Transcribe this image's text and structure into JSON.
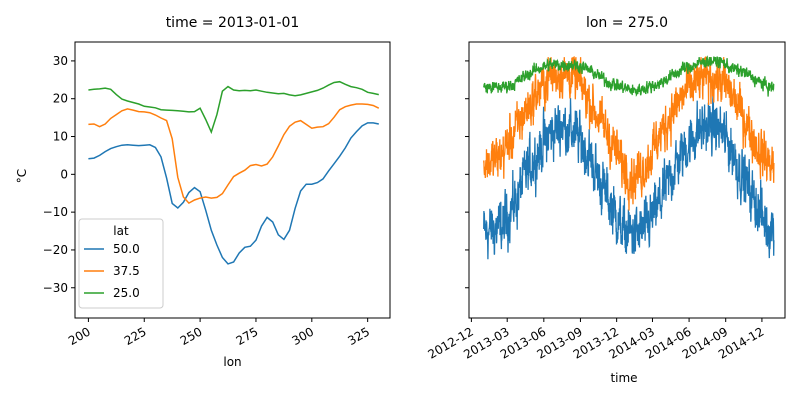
{
  "colors": {
    "blue": "#1f77b4",
    "orange": "#ff7f0e",
    "green": "#2ca02c"
  },
  "chart_data": [
    {
      "type": "line",
      "title": "time = 2013-01-01",
      "xlabel": "lon",
      "ylabel": "°C",
      "xlim": [
        194,
        335
      ],
      "ylim": [
        -38,
        35
      ],
      "xticks": [
        200,
        225,
        250,
        275,
        300,
        325
      ],
      "yticks": [
        -30,
        -20,
        -10,
        0,
        10,
        20,
        30
      ],
      "grid": false,
      "legend": {
        "title": "lat",
        "placement": "lower-left"
      },
      "x": [
        200,
        202.5,
        205,
        207.5,
        210,
        212.5,
        215,
        217.5,
        220,
        222.5,
        225,
        227.5,
        230,
        232.5,
        235,
        237.5,
        240,
        242.5,
        245,
        247.5,
        250,
        252.5,
        255,
        257.5,
        260,
        262.5,
        265,
        267.5,
        270,
        272.5,
        275,
        277.5,
        280,
        282.5,
        285,
        287.5,
        290,
        292.5,
        295,
        297.5,
        300,
        302.5,
        305,
        307.5,
        310,
        312.5,
        315,
        317.5,
        320,
        322.5,
        325,
        327.5,
        330
      ],
      "series": [
        {
          "name": "50.0",
          "color_key": "blue",
          "values": [
            4.1,
            4.3,
            5.0,
            6.0,
            6.8,
            7.3,
            7.7,
            7.8,
            7.7,
            7.6,
            7.7,
            7.8,
            7.1,
            4.6,
            -1.0,
            -7.7,
            -8.9,
            -7.4,
            -4.8,
            -3.5,
            -4.6,
            -9.5,
            -14.8,
            -18.7,
            -22.0,
            -23.7,
            -23.2,
            -20.8,
            -19.3,
            -19.0,
            -17.4,
            -13.7,
            -11.4,
            -12.6,
            -16.0,
            -17.2,
            -14.8,
            -9.0,
            -4.4,
            -2.6,
            -2.6,
            -2.2,
            -1.2,
            0.9,
            2.8,
            4.8,
            7.0,
            9.6,
            11.3,
            12.8,
            13.6,
            13.6,
            13.3
          ]
        },
        {
          "name": "37.5",
          "color_key": "orange",
          "values": [
            13.2,
            13.3,
            12.6,
            13.3,
            14.8,
            15.8,
            16.8,
            17.3,
            17.0,
            16.6,
            16.5,
            16.3,
            15.7,
            14.9,
            14.2,
            9.4,
            -0.8,
            -6.0,
            -7.6,
            -6.8,
            -6.3,
            -6.0,
            -6.3,
            -6.1,
            -5.1,
            -2.8,
            -0.6,
            0.3,
            1.1,
            2.3,
            2.6,
            2.2,
            2.7,
            4.6,
            7.5,
            10.5,
            12.7,
            13.8,
            14.2,
            13.2,
            12.2,
            12.5,
            12.6,
            13.4,
            15.1,
            17.1,
            17.9,
            18.3,
            18.6,
            18.6,
            18.5,
            18.2,
            17.5
          ]
        },
        {
          "name": "25.0",
          "color_key": "green",
          "values": [
            22.3,
            22.5,
            22.6,
            22.8,
            22.5,
            21.1,
            19.9,
            19.4,
            19.0,
            18.6,
            18.0,
            17.8,
            17.6,
            17.1,
            17.0,
            16.9,
            16.8,
            16.7,
            16.5,
            16.6,
            17.5,
            14.5,
            11.2,
            15.8,
            22.0,
            23.2,
            22.3,
            22.1,
            22.2,
            22.1,
            22.3,
            22.0,
            21.7,
            21.5,
            21.3,
            21.4,
            21.0,
            20.8,
            21.0,
            21.4,
            21.8,
            22.2,
            22.8,
            23.6,
            24.3,
            24.5,
            23.8,
            23.2,
            22.9,
            22.5,
            21.7,
            21.4,
            21.1
          ]
        }
      ]
    },
    {
      "type": "line",
      "title": "lon = 275.0",
      "xlabel": "time",
      "ylabel": "",
      "xlim": [
        "2012-11-25",
        "2015-01-28"
      ],
      "ylim": [
        -38,
        35
      ],
      "xticks": [
        "2012-12",
        "2013-03",
        "2013-06",
        "2013-09",
        "2013-12",
        "2014-03",
        "2014-06",
        "2014-09",
        "2014-12"
      ],
      "yticks": [
        -30,
        -20,
        -10,
        0,
        10,
        20,
        30
      ],
      "tick_labels_y_visible": false,
      "grid": false,
      "series_note_start": "2013-01-01",
      "series_note_end": "2014-12-31",
      "series": [
        {
          "name": "50.0",
          "color_key": "blue",
          "monthly_mean": [
            -15,
            -14,
            -8,
            0,
            6,
            11,
            13,
            11,
            6,
            -1,
            -8,
            -15,
            -16,
            -14,
            -8,
            0,
            6,
            11,
            13,
            12,
            6,
            -1,
            -8,
            -14
          ],
          "noise": 7
        },
        {
          "name": "37.5",
          "color_key": "orange",
          "monthly_mean": [
            3,
            5,
            11,
            17,
            22,
            26,
            27,
            26,
            21,
            15,
            9,
            2,
            -1,
            3,
            10,
            16,
            21,
            24,
            26,
            25,
            21,
            15,
            8,
            3
          ],
          "noise": 6
        },
        {
          "name": "25.0",
          "color_key": "green",
          "monthly_mean": [
            23,
            23,
            24,
            26,
            28,
            29,
            29,
            29,
            28,
            26,
            24,
            23,
            22,
            23,
            24,
            26,
            28,
            29,
            30,
            30,
            28,
            27,
            25,
            23
          ],
          "noise": 1.6
        }
      ]
    }
  ]
}
